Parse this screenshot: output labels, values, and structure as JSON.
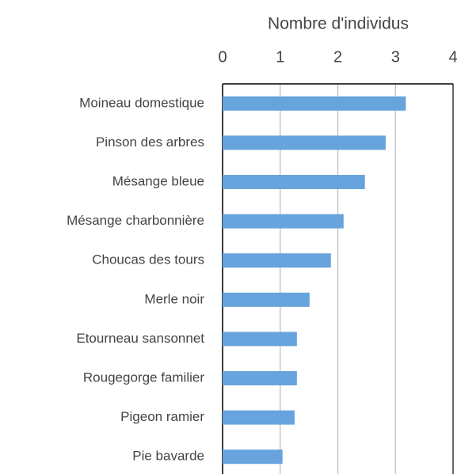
{
  "chart_data": {
    "type": "bar",
    "orientation": "horizontal",
    "x_axis_position": "top",
    "x_label": "Nombre d'individus",
    "categories": [
      "Moineau domestique",
      "Pinson des arbres",
      "Mésange bleue",
      "Mésange charbonnière",
      "Choucas des tours",
      "Merle noir",
      "Etourneau sansonnet",
      "Rougegorge familier",
      "Pigeon ramier",
      "Pie bavarde"
    ],
    "values": [
      3.18,
      2.83,
      2.47,
      2.1,
      1.88,
      1.51,
      1.29,
      1.29,
      1.25,
      1.04
    ],
    "color": "#67a3dc",
    "xlim": [
      0,
      4
    ],
    "xticks": [
      0,
      1,
      2,
      3,
      4
    ],
    "grid": true
  }
}
